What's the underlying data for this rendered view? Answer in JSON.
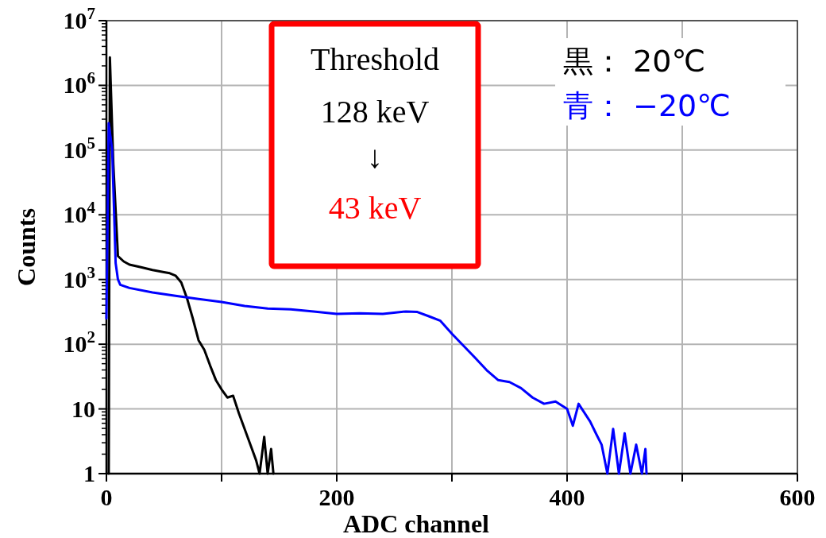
{
  "chart_data": {
    "type": "line",
    "xlabel": "ADC channel",
    "ylabel": "Counts",
    "xlim": [
      0,
      600
    ],
    "xticks": [
      0,
      {
        "value": 100,
        "label": null
      },
      200,
      {
        "value": 300,
        "label": null
      },
      400,
      {
        "value": 500,
        "label": null
      },
      600
    ],
    "ylim": [
      1,
      10000000
    ],
    "yticks": [
      1,
      10,
      {
        "value": 100,
        "label": "10$^{2}$"
      },
      {
        "value": 1000,
        "label": "10$^{3}$"
      },
      {
        "value": 10000,
        "label": "10$^{4}$"
      },
      {
        "value": 100000,
        "label": "10$^{5}$"
      },
      {
        "value": 1000000,
        "label": "10$^{6}$"
      },
      {
        "value": 10000000,
        "label": "10$^{7}$"
      }
    ],
    "log": "y",
    "grid": true,
    "legend": "top right",
    "line_style": "solid",
    "marker": "none",
    "annotations": [
      "Threshold",
      "128 keV",
      "↓",
      "43 keV"
    ],
    "series": [
      {
        "name": "黒： 20℃",
        "color": "#000000",
        "x": [
          2,
          3,
          6,
          10,
          15,
          20,
          30,
          40,
          50,
          55,
          60,
          65,
          70,
          75,
          80,
          85,
          90,
          95,
          100,
          105,
          110,
          115,
          120,
          125,
          130,
          133,
          137,
          140,
          143,
          145
        ],
        "values": [
          1,
          2700000,
          60000,
          2300,
          1900,
          1700,
          1550,
          1400,
          1300,
          1250,
          1150,
          900,
          510,
          250,
          115,
          82,
          47,
          28,
          20,
          15,
          16,
          8.6,
          4.9,
          2.8,
          1.6,
          1,
          3.7,
          1,
          2.4,
          1
        ]
      },
      {
        "name": "青： −20℃",
        "color": "#0000ff",
        "x": [
          0,
          2,
          5,
          8,
          10,
          12,
          20,
          40,
          60,
          80,
          100,
          120,
          140,
          160,
          180,
          200,
          220,
          240,
          260,
          270,
          280,
          290,
          300,
          310,
          320,
          330,
          340,
          350,
          360,
          370,
          380,
          390,
          400,
          405,
          410,
          420,
          425,
          430,
          435,
          440,
          445,
          450,
          455,
          460,
          465,
          468,
          469
        ],
        "values": [
          250,
          260000,
          100000,
          1800,
          1000,
          830,
          740,
          630,
          560,
          500,
          450,
          390,
          355,
          345,
          320,
          295,
          300,
          295,
          320,
          315,
          270,
          230,
          145,
          95,
          62,
          40,
          28,
          26,
          21,
          15,
          12,
          13,
          10,
          5.5,
          12,
          6.4,
          4.2,
          2.8,
          1,
          4.9,
          1,
          4.2,
          1,
          2.8,
          1,
          2.4,
          1
        ]
      }
    ]
  }
}
